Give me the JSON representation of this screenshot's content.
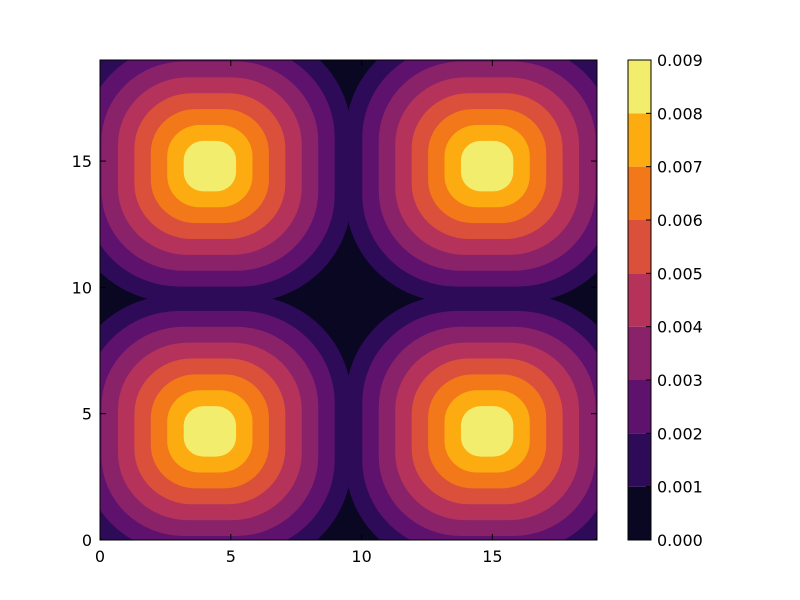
{
  "chart_data": {
    "type": "heatmap",
    "subtype": "filled-contour",
    "colormap": "inferno",
    "title": "",
    "xlabel": "",
    "ylabel": "",
    "xlim": [
      0,
      19
    ],
    "ylim": [
      0,
      19
    ],
    "xticks": [
      "0",
      "5",
      "10",
      "15"
    ],
    "yticks": [
      "0",
      "5",
      "10",
      "15"
    ],
    "grid": false,
    "peaks": [
      {
        "x": 4.2,
        "y": 4.3,
        "value": 0.009
      },
      {
        "x": 14.8,
        "y": 4.3,
        "value": 0.009
      },
      {
        "x": 4.2,
        "y": 14.8,
        "value": 0.009
      },
      {
        "x": 14.8,
        "y": 14.8,
        "value": 0.009
      }
    ],
    "contour_levels": [
      0.0,
      0.001,
      0.002,
      0.003,
      0.004,
      0.005,
      0.006,
      0.007,
      0.008,
      0.009
    ],
    "colorbar": {
      "ticks": [
        "0.000",
        "0.001",
        "0.002",
        "0.003",
        "0.004",
        "0.005",
        "0.006",
        "0.007",
        "0.008",
        "0.009"
      ],
      "band_colors": [
        "#0a0722",
        "#2d0b59",
        "#5e126e",
        "#8a226a",
        "#b5325a",
        "#db503b",
        "#f37819",
        "#fcac11",
        "#f3ed6e"
      ]
    }
  }
}
